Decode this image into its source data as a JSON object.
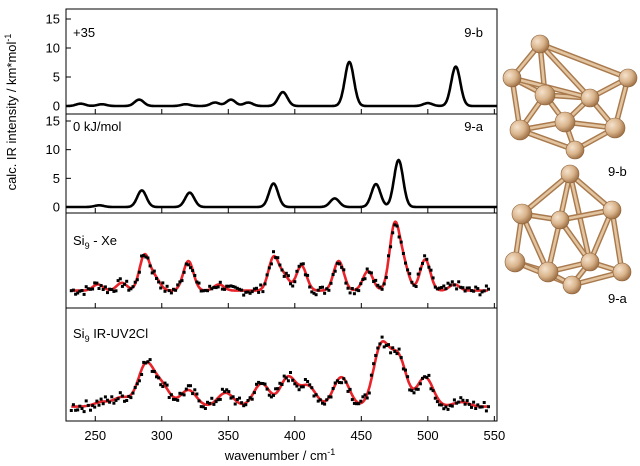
{
  "chart_data": {
    "type": "line",
    "xlabel_main": "wavenumber / cm",
    "xlabel_exp": "-1",
    "ylabel_main": "calc. IR intensity / km*mol",
    "ylabel_exp": "-1",
    "xlim": [
      228,
      552
    ],
    "xticks": [
      250,
      300,
      350,
      400,
      450,
      500,
      550
    ],
    "panels": [
      {
        "id": "9-b",
        "label_left": "+35",
        "label_right": "9-b",
        "ylim": [
          0,
          15
        ],
        "yticks": [
          0,
          5,
          10,
          15
        ],
        "color": "#000000",
        "fwhm": 8,
        "peaks": [
          [
            239,
            0.4
          ],
          [
            255,
            0.3
          ],
          [
            283,
            1.1
          ],
          [
            318,
            0.3
          ],
          [
            340,
            0.6
          ],
          [
            352,
            1.1
          ],
          [
            365,
            0.6
          ],
          [
            391,
            2.4
          ],
          [
            441,
            7.6
          ],
          [
            500,
            0.5
          ],
          [
            521,
            6.8
          ]
        ]
      },
      {
        "id": "9-a",
        "label_left": "0 kJ/mol",
        "label_right": "9-a",
        "ylim": [
          0,
          15
        ],
        "yticks": [
          0,
          5,
          10,
          15
        ],
        "color": "#000000",
        "fwhm": 8,
        "peaks": [
          [
            253,
            0.3
          ],
          [
            285,
            2.9
          ],
          [
            321,
            2.5
          ],
          [
            384,
            4.1
          ],
          [
            430,
            1.5
          ],
          [
            461,
            4.0
          ],
          [
            478,
            8.2
          ]
        ]
      },
      {
        "id": "xe",
        "label_main": "Si",
        "label_sub": "9",
        "label_rest": " - Xe",
        "baseline": 0.12,
        "ymax": 1.0,
        "noise": 0.06,
        "fwhm": 9,
        "fit_color": "#e8252b",
        "point_color": "#000000",
        "peaks": [
          [
            252,
            0.08
          ],
          [
            270,
            0.1
          ],
          [
            287,
            0.45
          ],
          [
            295,
            0.15
          ],
          [
            320,
            0.38
          ],
          [
            343,
            0.08
          ],
          [
            384,
            0.42
          ],
          [
            392,
            0.18
          ],
          [
            405,
            0.32
          ],
          [
            433,
            0.38
          ],
          [
            455,
            0.25
          ],
          [
            475,
            0.82
          ],
          [
            482,
            0.3
          ],
          [
            498,
            0.4
          ],
          [
            520,
            0.08
          ]
        ]
      },
      {
        "id": "uv2cl",
        "label_main": "Si",
        "label_sub": "9",
        "label_rest": " IR-UV2Cl",
        "baseline": 0.08,
        "ymax": 1.0,
        "noise": 0.06,
        "fwhm": 14,
        "fit_color": "#e8252b",
        "point_color": "#000000",
        "peaks": [
          [
            255,
            0.05
          ],
          [
            270,
            0.1
          ],
          [
            288,
            0.45
          ],
          [
            300,
            0.22
          ],
          [
            320,
            0.18
          ],
          [
            348,
            0.15
          ],
          [
            375,
            0.25
          ],
          [
            395,
            0.32
          ],
          [
            410,
            0.22
          ],
          [
            435,
            0.32
          ],
          [
            465,
            0.65
          ],
          [
            478,
            0.52
          ],
          [
            498,
            0.32
          ],
          [
            525,
            0.05
          ]
        ]
      }
    ]
  },
  "isomers": [
    {
      "label": "9-b"
    },
    {
      "label": "9-a"
    }
  ],
  "colors": {
    "atom_fill": "#d9b48c",
    "atom_shade": "#b08050",
    "bond": "#cda27a"
  }
}
